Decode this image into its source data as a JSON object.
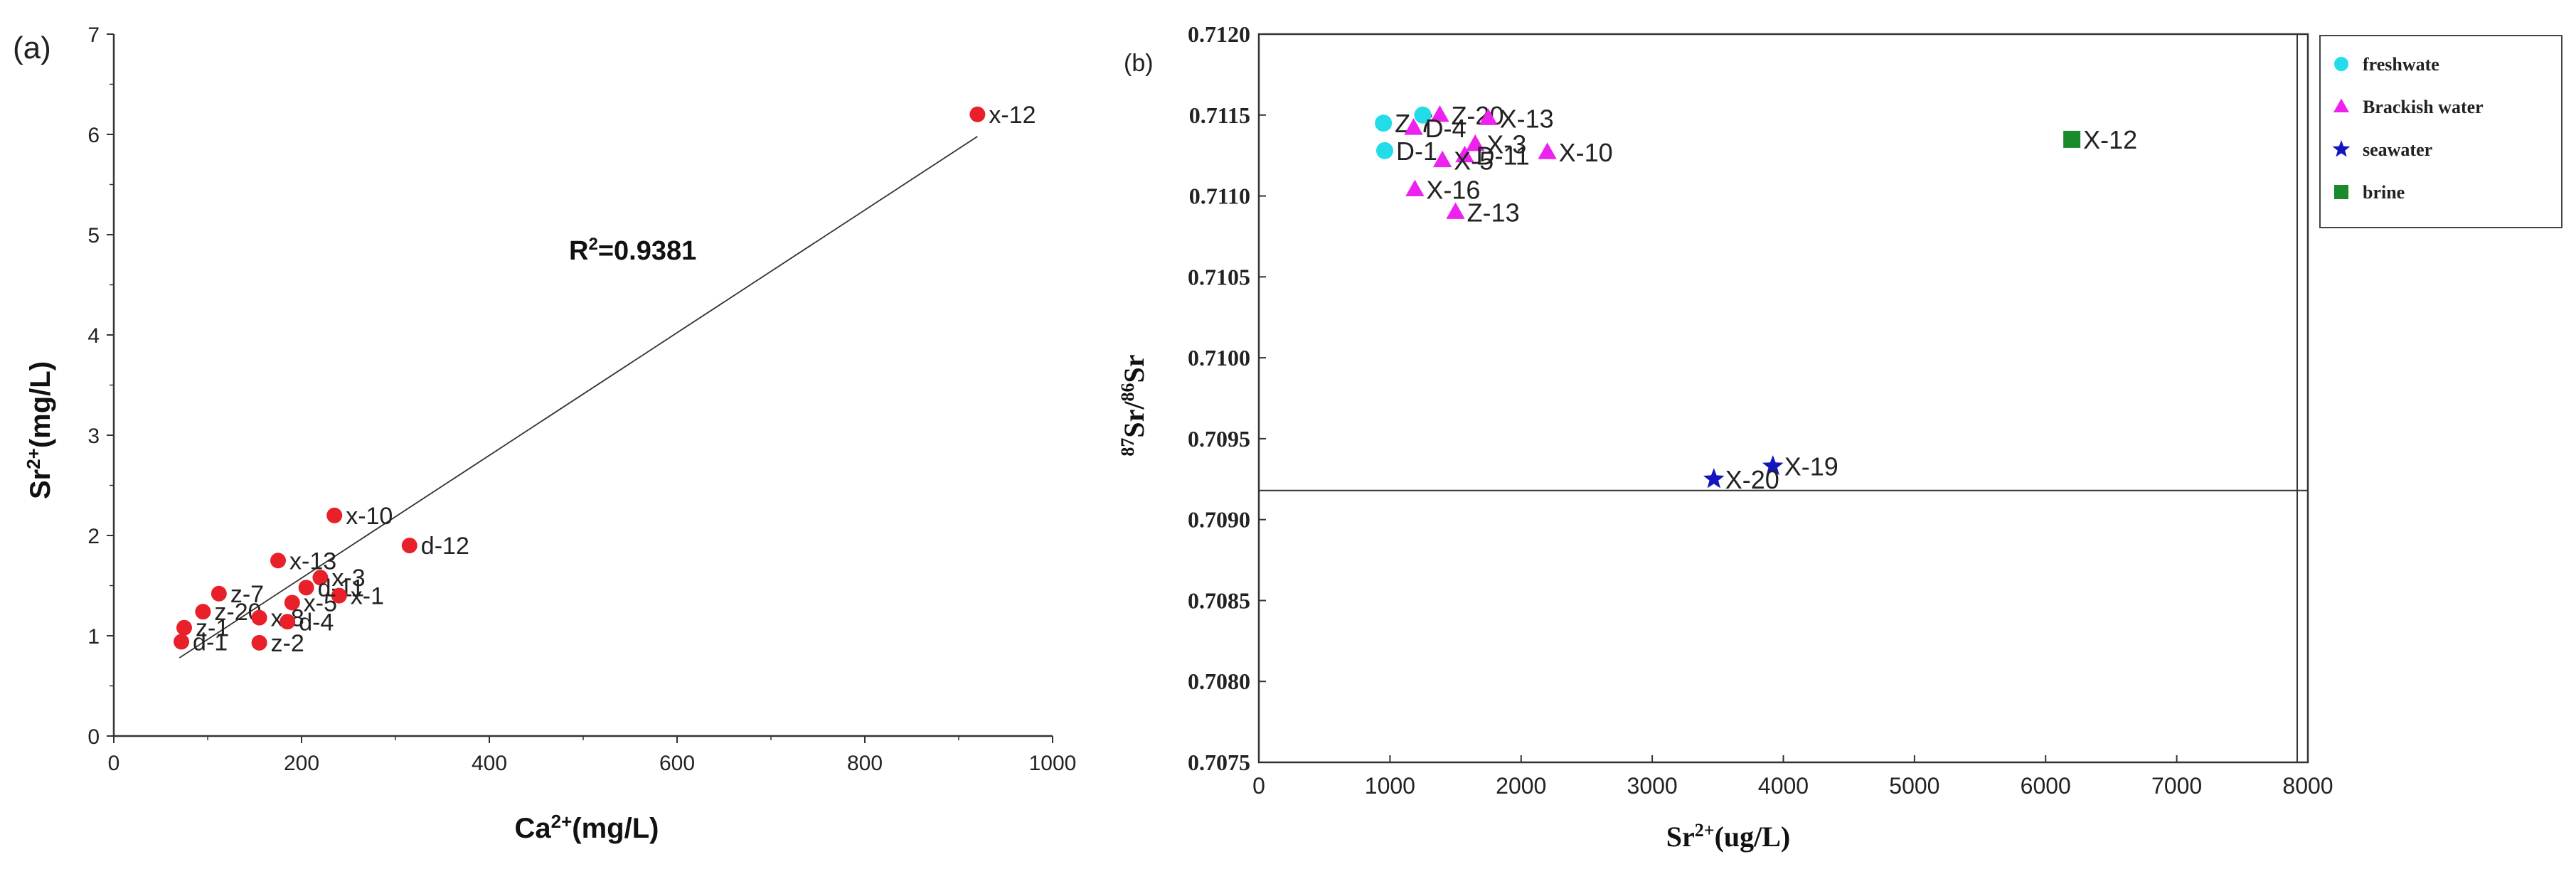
{
  "chart_data": [
    {
      "panel": "(a)",
      "type": "scatter",
      "xlabel": {
        "base": "Ca",
        "sup": "2+",
        "unit": "(mg/L)"
      },
      "ylabel": {
        "base": "Sr",
        "sup": "2+",
        "unit": "(mg/L)"
      },
      "xlim": [
        0,
        1000
      ],
      "ylim": [
        0,
        7
      ],
      "xticks": [
        "0",
        "200",
        "400",
        "600",
        "800",
        "1000"
      ],
      "yticks": [
        "0",
        "1",
        "2",
        "3",
        "4",
        "5",
        "6",
        "7"
      ],
      "grid": false,
      "annotation": {
        "base": "R",
        "sup": "2",
        "rest": "=0.9381"
      },
      "marker_color": "#e8202a",
      "trendline": {
        "x": [
          70,
          920
        ],
        "y": [
          0.78,
          5.98
        ]
      },
      "points": [
        {
          "label": "x-12",
          "x": 920,
          "y": 6.2
        },
        {
          "label": "x-10",
          "x": 235,
          "y": 2.2
        },
        {
          "label": "d-12",
          "x": 315,
          "y": 1.9
        },
        {
          "label": "x-13",
          "x": 175,
          "y": 1.75
        },
        {
          "label": "x-3",
          "x": 220,
          "y": 1.58
        },
        {
          "label": "d-11",
          "x": 205,
          "y": 1.48
        },
        {
          "label": "x-1",
          "x": 240,
          "y": 1.4
        },
        {
          "label": "z-7",
          "x": 112,
          "y": 1.42
        },
        {
          "label": "x-5",
          "x": 190,
          "y": 1.33
        },
        {
          "label": "z-20",
          "x": 95,
          "y": 1.24
        },
        {
          "label": "x-8",
          "x": 155,
          "y": 1.18
        },
        {
          "label": "d-4",
          "x": 185,
          "y": 1.14
        },
        {
          "label": "z-1",
          "x": 75,
          "y": 1.08
        },
        {
          "label": "d-1",
          "x": 72,
          "y": 0.94
        },
        {
          "label": "z-2",
          "x": 155,
          "y": 0.93
        }
      ]
    },
    {
      "panel": "(b)",
      "type": "scatter",
      "xlabel": {
        "base": "Sr",
        "sup": "2+",
        "unit": "(ug/L)"
      },
      "ylabel": {
        "sup1": "87",
        "base1": "Sr/",
        "sup2": "86",
        "base2": "Sr"
      },
      "xlim": [
        0,
        8000
      ],
      "ylim": [
        0.7075,
        0.712
      ],
      "xticks": [
        "0",
        "1000",
        "2000",
        "3000",
        "4000",
        "5000",
        "6000",
        "7000",
        "8000"
      ],
      "yticks": [
        "0.7075",
        "0.7080",
        "0.7085",
        "0.7090",
        "0.7095",
        "0.7100",
        "0.7105",
        "0.7110",
        "0.7115",
        "0.7120"
      ],
      "grid": false,
      "reference_line_y": 0.70918,
      "legend_position": "top-right",
      "series": [
        {
          "name": "freshwate",
          "marker": "circle",
          "color": "#22dde8",
          "points": [
            {
              "label": "Z-7",
              "x": 950,
              "y": 0.71145
            },
            {
              "label": "D-1",
              "x": 960,
              "y": 0.71128
            },
            {
              "label": "",
              "x": 1250,
              "y": 0.7115
            }
          ]
        },
        {
          "name": "Brackish water",
          "marker": "triangle",
          "color": "#ee22ee",
          "points": [
            {
              "label": "Z-20",
              "x": 1380,
              "y": 0.7115
            },
            {
              "label": "D-4",
              "x": 1180,
              "y": 0.71142
            },
            {
              "label": "X-13",
              "x": 1750,
              "y": 0.71148
            },
            {
              "label": "X-3",
              "x": 1650,
              "y": 0.71132
            },
            {
              "label": "D-11",
              "x": 1570,
              "y": 0.71125
            },
            {
              "label": "X-5",
              "x": 1400,
              "y": 0.71122
            },
            {
              "label": "X-10",
              "x": 2200,
              "y": 0.71127
            },
            {
              "label": "X-16",
              "x": 1190,
              "y": 0.71104
            },
            {
              "label": "Z-13",
              "x": 1500,
              "y": 0.7109
            }
          ]
        },
        {
          "name": "seawater",
          "marker": "star",
          "color": "#1515c0",
          "points": [
            {
              "label": "X-19",
              "x": 3920,
              "y": 0.70933
            },
            {
              "label": "X-20",
              "x": 3470,
              "y": 0.70925
            }
          ]
        },
        {
          "name": "brine",
          "marker": "square",
          "color": "#1b8a2a",
          "points": [
            {
              "label": "X-12",
              "x": 6200,
              "y": 0.71135
            }
          ]
        }
      ]
    }
  ]
}
